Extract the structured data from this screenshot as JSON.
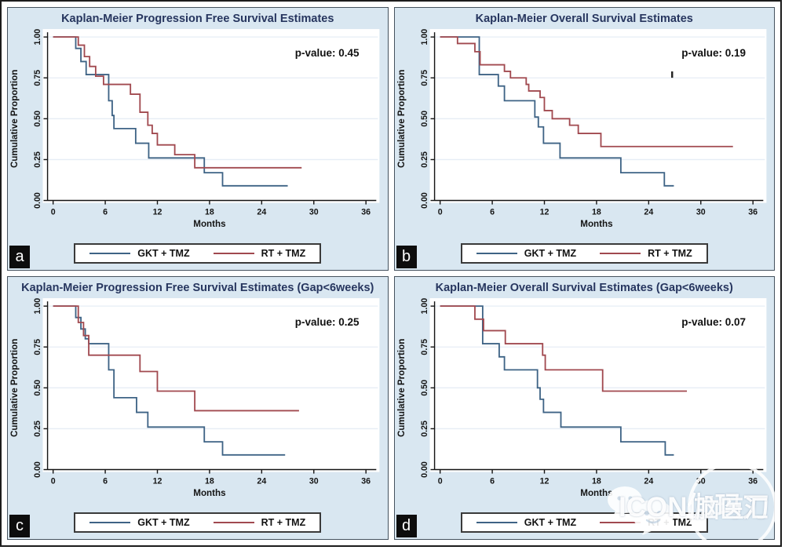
{
  "figure": {
    "watermark": {
      "brand": "ICON伽玛刀",
      "seal": "脑医汇"
    },
    "colors": {
      "gkt": "#3e6385",
      "rt": "#a1494f",
      "panel_bg": "#d9e7f1",
      "grid": "#e6edf5",
      "axis": "#141414",
      "title": "#27365f"
    }
  },
  "axes": {
    "x_label": "Months",
    "y_label": "Cumulative Proportion",
    "x_ticks": [
      0,
      6,
      12,
      18,
      24,
      30,
      36
    ],
    "x_max": 36,
    "y_tick_values": [
      0,
      0.25,
      0.5,
      0.75,
      1
    ],
    "y_tick_labels": [
      "0.00",
      "0.25",
      "0.50",
      "0.75",
      "1.00"
    ],
    "grid_y": [
      0.25,
      0.5,
      0.75,
      1.0
    ]
  },
  "legend": [
    {
      "label": "GKT + TMZ",
      "series": "gkt"
    },
    {
      "label": "RT + TMZ",
      "series": "rt"
    }
  ],
  "chart_data": [
    {
      "badge": "a",
      "type": "line",
      "title": "Kaplan-Meier Progression Free Survival Estimates",
      "p_value_label": "p-value: 0.45",
      "xlabel": "Months",
      "ylabel": "Cumulative Proportion",
      "xlim": [
        0,
        36
      ],
      "ylim": [
        0,
        1
      ],
      "series": [
        {
          "name": "GKT + TMZ",
          "color_key": "gkt",
          "end_x": 27.0,
          "steps": [
            [
              0,
              1.0
            ],
            [
              2.6,
              0.93
            ],
            [
              3.2,
              0.85
            ],
            [
              3.8,
              0.77
            ],
            [
              6.4,
              0.61
            ],
            [
              6.8,
              0.52
            ],
            [
              7.0,
              0.44
            ],
            [
              9.5,
              0.35
            ],
            [
              11.0,
              0.26
            ],
            [
              17.4,
              0.17
            ],
            [
              19.5,
              0.09
            ]
          ]
        },
        {
          "name": "RT + TMZ",
          "color_key": "rt",
          "end_x": 28.6,
          "steps": [
            [
              0,
              1.0
            ],
            [
              2.9,
              0.95
            ],
            [
              3.6,
              0.88
            ],
            [
              4.2,
              0.82
            ],
            [
              4.9,
              0.76
            ],
            [
              5.8,
              0.71
            ],
            [
              8.9,
              0.65
            ],
            [
              10.0,
              0.54
            ],
            [
              10.9,
              0.46
            ],
            [
              11.4,
              0.41
            ],
            [
              12.0,
              0.34
            ],
            [
              14.0,
              0.28
            ],
            [
              16.3,
              0.2
            ]
          ]
        }
      ],
      "censor_marks": []
    },
    {
      "badge": "b",
      "type": "line",
      "title": "Kaplan-Meier Overall Survival Estimates",
      "p_value_label": "p-value: 0.19",
      "xlabel": "Months",
      "ylabel": "Cumulative Proportion",
      "xlim": [
        0,
        36
      ],
      "ylim": [
        0,
        1
      ],
      "series": [
        {
          "name": "GKT + TMZ",
          "color_key": "gkt",
          "end_x": 26.9,
          "steps": [
            [
              0,
              1.0
            ],
            [
              4.5,
              0.77
            ],
            [
              6.7,
              0.7
            ],
            [
              7.4,
              0.61
            ],
            [
              10.9,
              0.51
            ],
            [
              11.3,
              0.45
            ],
            [
              11.9,
              0.35
            ],
            [
              13.8,
              0.26
            ],
            [
              20.8,
              0.17
            ],
            [
              25.8,
              0.09
            ]
          ]
        },
        {
          "name": "RT + TMZ",
          "color_key": "rt",
          "end_x": 33.7,
          "steps": [
            [
              0,
              1.0
            ],
            [
              2.0,
              0.96
            ],
            [
              4.0,
              0.91
            ],
            [
              4.6,
              0.83
            ],
            [
              7.4,
              0.79
            ],
            [
              8.1,
              0.75
            ],
            [
              9.9,
              0.71
            ],
            [
              10.2,
              0.67
            ],
            [
              11.5,
              0.63
            ],
            [
              12.0,
              0.55
            ],
            [
              12.9,
              0.5
            ],
            [
              14.9,
              0.46
            ],
            [
              15.9,
              0.41
            ],
            [
              18.5,
              0.33
            ]
          ]
        }
      ],
      "censor_marks": [
        {
          "x": 26.7,
          "y": 0.77
        }
      ]
    },
    {
      "badge": "c",
      "type": "line",
      "title": "Kaplan-Meier Progression Free Survival Estimates (Gap<6weeks)",
      "p_value_label": "p-value: 0.25",
      "xlabel": "Months",
      "ylabel": "Cumulative Proportion",
      "xlim": [
        0,
        36
      ],
      "ylim": [
        0,
        1
      ],
      "series": [
        {
          "name": "GKT + TMZ",
          "color_key": "gkt",
          "end_x": 26.7,
          "steps": [
            [
              0,
              1.0
            ],
            [
              2.6,
              0.93
            ],
            [
              3.2,
              0.86
            ],
            [
              3.7,
              0.8
            ],
            [
              4.1,
              0.77
            ],
            [
              6.4,
              0.61
            ],
            [
              7.0,
              0.44
            ],
            [
              9.6,
              0.35
            ],
            [
              10.9,
              0.26
            ],
            [
              17.4,
              0.17
            ],
            [
              19.5,
              0.09
            ]
          ]
        },
        {
          "name": "RT + TMZ",
          "color_key": "rt",
          "end_x": 28.3,
          "steps": [
            [
              0,
              1.0
            ],
            [
              2.9,
              0.9
            ],
            [
              3.5,
              0.82
            ],
            [
              4.1,
              0.7
            ],
            [
              10.0,
              0.6
            ],
            [
              12.0,
              0.48
            ],
            [
              16.3,
              0.36
            ]
          ]
        }
      ],
      "censor_marks": []
    },
    {
      "badge": "d",
      "type": "line",
      "title": "Kaplan-Meier Overall Survival Estimates (Gap<6weeks)",
      "p_value_label": "p-value: 0.07",
      "xlabel": "Months",
      "ylabel": "Cumulative Proportion",
      "xlim": [
        0,
        36
      ],
      "ylim": [
        0,
        1
      ],
      "series": [
        {
          "name": "GKT + TMZ",
          "color_key": "gkt",
          "end_x": 26.9,
          "steps": [
            [
              0,
              1.0
            ],
            [
              4.9,
              0.77
            ],
            [
              6.8,
              0.69
            ],
            [
              7.4,
              0.61
            ],
            [
              11.2,
              0.5
            ],
            [
              11.5,
              0.43
            ],
            [
              11.9,
              0.35
            ],
            [
              13.9,
              0.26
            ],
            [
              20.8,
              0.17
            ],
            [
              25.9,
              0.09
            ]
          ]
        },
        {
          "name": "RT + TMZ",
          "color_key": "rt",
          "end_x": 28.4,
          "steps": [
            [
              0,
              1.0
            ],
            [
              4.0,
              0.92
            ],
            [
              5.0,
              0.85
            ],
            [
              7.5,
              0.77
            ],
            [
              11.8,
              0.7
            ],
            [
              12.1,
              0.61
            ],
            [
              18.7,
              0.48
            ]
          ]
        }
      ],
      "censor_marks": []
    }
  ]
}
